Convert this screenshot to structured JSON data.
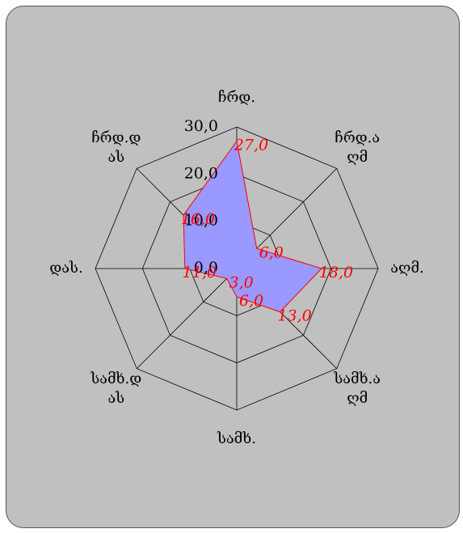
{
  "chart_data": {
    "type": "radar",
    "categories": [
      "ჩრდ.",
      "ჩრდ.აღმ",
      "აღმ.",
      "სამხ.აღმ",
      "სამხ.",
      "სამხ.დას",
      "დას.",
      "ჩრდ.დას"
    ],
    "values": [
      27,
      6,
      18,
      13,
      6,
      3,
      11,
      16
    ],
    "value_labels": [
      "27,0",
      "6,0",
      "18,0",
      "13,0",
      "6,0",
      "3,0",
      "11,0",
      "16,0"
    ],
    "color": "#9999ff",
    "line_color": "#ff0000",
    "ylim": [
      0,
      30
    ],
    "yticks": [
      {
        "value": 0,
        "label": "0,0"
      },
      {
        "value": 10,
        "label": "10,0"
      },
      {
        "value": 20,
        "label": "20,0"
      },
      {
        "value": 30,
        "label": "30,0"
      }
    ],
    "grid": true
  }
}
